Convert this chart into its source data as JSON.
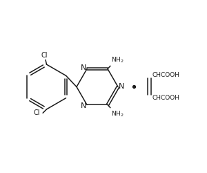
{
  "bg_color": "#ffffff",
  "line_color": "#1a1a1a",
  "line_width": 1.1,
  "font_size": 7.0,
  "fig_width": 3.0,
  "fig_height": 2.5,
  "dpi": 100,
  "xlim": [
    0,
    10
  ],
  "ylim": [
    0,
    8.333
  ]
}
